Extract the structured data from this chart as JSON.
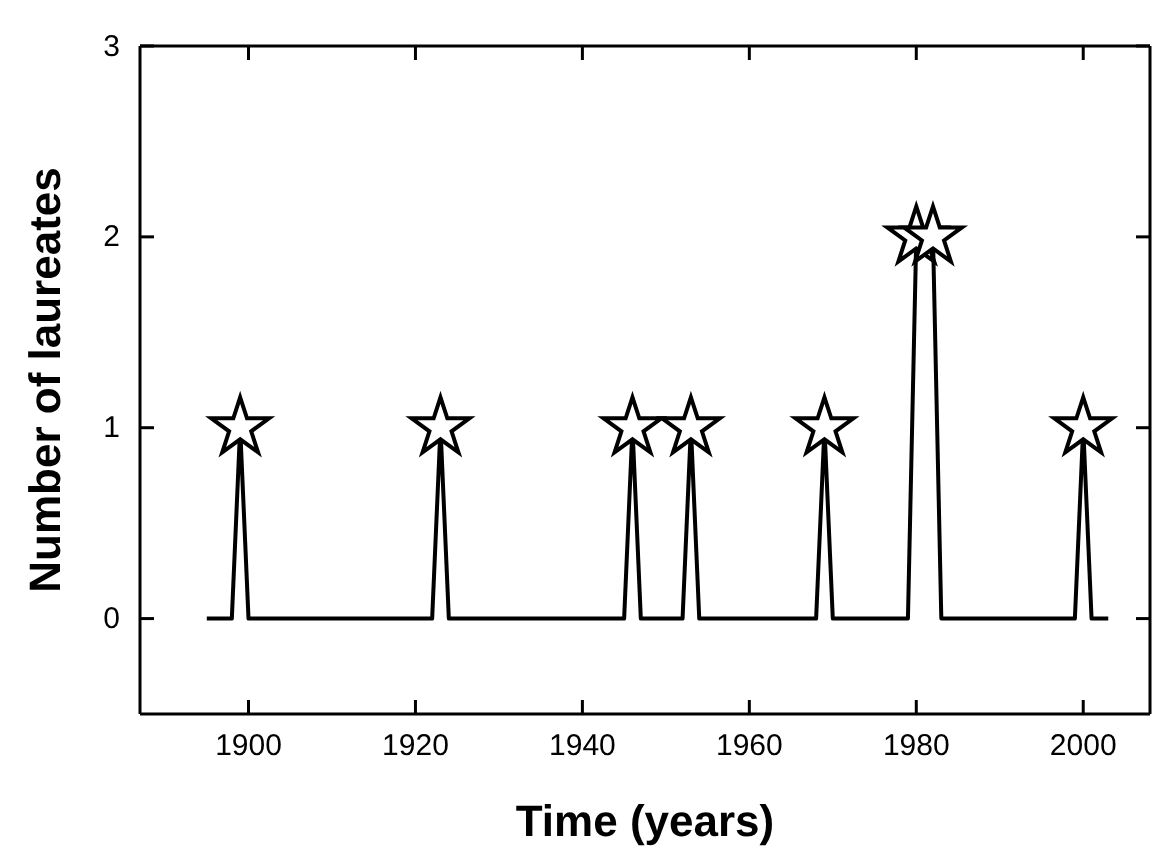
{
  "chart_data": {
    "type": "line",
    "xlabel": "Time (years)",
    "ylabel": "Number of laureates",
    "xlim": [
      1887,
      2008
    ],
    "ylim": [
      -0.5,
      3
    ],
    "xticks": [
      1900,
      1920,
      1940,
      1960,
      1980,
      2000
    ],
    "yticks": [
      0,
      1,
      2,
      3
    ],
    "grid": false,
    "series": [
      {
        "color": "#000000",
        "marker": "none",
        "x": [
          1895,
          1898,
          1899,
          1900,
          1922,
          1923,
          1924,
          1945,
          1946,
          1947,
          1952,
          1953,
          1954,
          1968,
          1969,
          1970,
          1979,
          1980,
          1982,
          1983,
          1999,
          2000,
          2001,
          2003
        ],
        "values": [
          0,
          0,
          1,
          0,
          0,
          1,
          0,
          0,
          1,
          0,
          0,
          1,
          0,
          0,
          1,
          0,
          0,
          2,
          2,
          0,
          0,
          1,
          0,
          0
        ]
      },
      {
        "type": "scatter",
        "color": "#000000",
        "marker": "star",
        "x": [
          1899,
          1923,
          1946,
          1953,
          1969,
          1980,
          1982,
          2000
        ],
        "values": [
          1,
          1,
          1,
          1,
          1,
          2,
          2,
          1
        ]
      }
    ]
  }
}
